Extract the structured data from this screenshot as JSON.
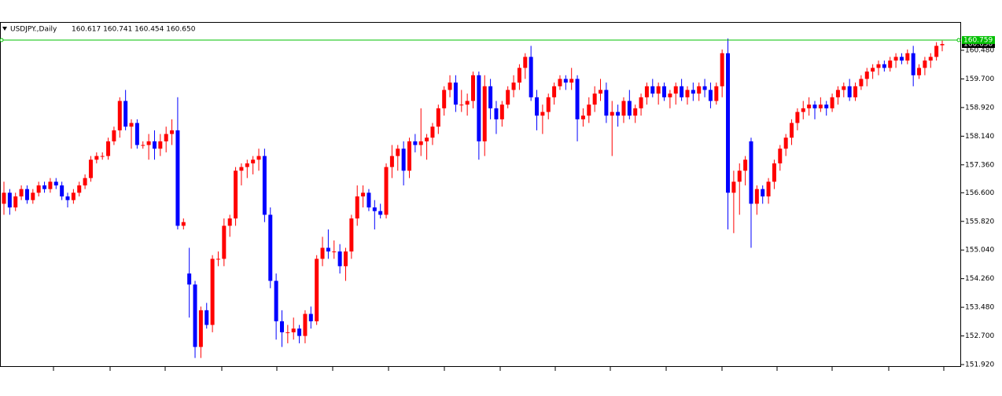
{
  "chart_data": {
    "type": "candlestick",
    "header": {
      "symbol": "USDJPY.,Daily",
      "ohlc_text": "160.617 160.741 160.454 160.650"
    },
    "up_color": "#ff0000",
    "down_color": "#0000ff",
    "ylim": [
      151.856,
      161.25
    ],
    "yticks": [
      {
        "value": 151.92,
        "label": "151.920"
      },
      {
        "value": 152.7,
        "label": "152.700"
      },
      {
        "value": 153.48,
        "label": "153.480"
      },
      {
        "value": 154.26,
        "label": "154.260"
      },
      {
        "value": 155.04,
        "label": "155.040"
      },
      {
        "value": 155.82,
        "label": "155.820"
      },
      {
        "value": 156.6,
        "label": "156.600"
      },
      {
        "value": 157.36,
        "label": "157.360"
      },
      {
        "value": 158.14,
        "label": "158.140"
      },
      {
        "value": 158.92,
        "label": "158.920"
      },
      {
        "value": 159.7,
        "label": "159.700"
      },
      {
        "value": 160.48,
        "label": "160.480"
      }
    ],
    "price_lines": [
      {
        "value": 160.759,
        "label": "160.759",
        "color": "#00c000",
        "line": true
      },
      {
        "value": 160.65,
        "label": "160.650",
        "color": "#000000",
        "line": false
      }
    ],
    "candles": [
      [
        156.3,
        156.9,
        156.0,
        156.6
      ],
      [
        156.6,
        156.7,
        156.0,
        156.2
      ],
      [
        156.2,
        156.6,
        156.1,
        156.5
      ],
      [
        156.5,
        156.8,
        156.4,
        156.7
      ],
      [
        156.7,
        156.8,
        156.3,
        156.4
      ],
      [
        156.4,
        156.7,
        156.3,
        156.6
      ],
      [
        156.6,
        156.9,
        156.5,
        156.8
      ],
      [
        156.8,
        156.9,
        156.6,
        156.7
      ],
      [
        156.7,
        157.0,
        156.6,
        156.9
      ],
      [
        156.9,
        157.0,
        156.7,
        156.8
      ],
      [
        156.8,
        156.9,
        156.4,
        156.5
      ],
      [
        156.5,
        156.6,
        156.2,
        156.4
      ],
      [
        156.4,
        156.7,
        156.3,
        156.6
      ],
      [
        156.6,
        156.9,
        156.5,
        156.8
      ],
      [
        156.8,
        157.1,
        156.7,
        157.0
      ],
      [
        157.0,
        157.6,
        156.9,
        157.5
      ],
      [
        157.5,
        157.7,
        157.4,
        157.6
      ],
      [
        157.6,
        157.7,
        157.5,
        157.6
      ],
      [
        157.6,
        158.1,
        157.5,
        158.0
      ],
      [
        158.0,
        158.4,
        157.9,
        158.3
      ],
      [
        158.3,
        159.2,
        158.1,
        159.1
      ],
      [
        159.1,
        159.4,
        158.3,
        158.4
      ],
      [
        158.4,
        158.6,
        157.8,
        158.5
      ],
      [
        158.5,
        158.6,
        157.8,
        157.9
      ],
      [
        157.9,
        158.0,
        157.8,
        157.9
      ],
      [
        157.9,
        158.2,
        157.5,
        158.0
      ],
      [
        158.0,
        158.3,
        157.5,
        157.8
      ],
      [
        157.8,
        158.2,
        157.6,
        158.0
      ],
      [
        158.0,
        158.4,
        157.7,
        158.2
      ],
      [
        158.2,
        158.6,
        157.9,
        158.3
      ],
      [
        158.3,
        159.2,
        155.6,
        155.7
      ],
      [
        155.7,
        155.9,
        155.6,
        155.8
      ],
      [
        154.4,
        155.1,
        153.2,
        154.1
      ],
      [
        154.1,
        154.2,
        152.1,
        152.4
      ],
      [
        152.4,
        153.5,
        152.1,
        153.4
      ],
      [
        153.4,
        153.6,
        152.9,
        153.0
      ],
      [
        153.0,
        154.9,
        152.8,
        154.8
      ],
      [
        154.8,
        155.0,
        154.6,
        154.8
      ],
      [
        154.8,
        155.9,
        154.6,
        155.7
      ],
      [
        155.7,
        156.0,
        155.4,
        155.9
      ],
      [
        155.9,
        157.3,
        155.7,
        157.2
      ],
      [
        157.2,
        157.4,
        156.8,
        157.3
      ],
      [
        157.3,
        157.5,
        157.0,
        157.4
      ],
      [
        157.4,
        157.6,
        157.1,
        157.5
      ],
      [
        157.5,
        157.8,
        157.2,
        157.6
      ],
      [
        157.6,
        157.8,
        155.8,
        156.0
      ],
      [
        156.0,
        156.2,
        154.0,
        154.2
      ],
      [
        154.2,
        154.4,
        152.6,
        153.1
      ],
      [
        153.1,
        153.4,
        152.4,
        152.8
      ],
      [
        152.8,
        153.0,
        152.5,
        152.8
      ],
      [
        152.8,
        153.2,
        152.6,
        152.9
      ],
      [
        152.9,
        153.0,
        152.5,
        152.7
      ],
      [
        152.7,
        153.4,
        152.5,
        153.3
      ],
      [
        153.3,
        153.5,
        152.9,
        153.1
      ],
      [
        153.1,
        154.9,
        153.0,
        154.8
      ],
      [
        154.8,
        155.4,
        154.6,
        155.1
      ],
      [
        155.1,
        155.6,
        154.8,
        155.0
      ],
      [
        155.0,
        155.3,
        154.8,
        155.0
      ],
      [
        155.0,
        155.2,
        154.4,
        154.6
      ],
      [
        154.6,
        155.1,
        154.2,
        155.0
      ],
      [
        155.0,
        156.0,
        154.8,
        155.9
      ],
      [
        155.9,
        156.8,
        155.7,
        156.5
      ],
      [
        156.5,
        156.8,
        156.2,
        156.6
      ],
      [
        156.6,
        156.7,
        156.1,
        156.2
      ],
      [
        156.2,
        156.4,
        155.6,
        156.1
      ],
      [
        156.1,
        156.3,
        155.9,
        156.0
      ],
      [
        156.0,
        157.4,
        155.9,
        157.3
      ],
      [
        157.3,
        157.9,
        157.0,
        157.6
      ],
      [
        157.6,
        157.9,
        157.2,
        157.8
      ],
      [
        157.8,
        158.0,
        156.8,
        157.2
      ],
      [
        157.2,
        158.1,
        157.0,
        158.0
      ],
      [
        158.0,
        158.2,
        157.7,
        157.9
      ],
      [
        157.9,
        158.9,
        157.6,
        158.0
      ],
      [
        158.0,
        158.2,
        157.5,
        158.1
      ],
      [
        158.1,
        158.5,
        157.9,
        158.4
      ],
      [
        158.4,
        159.0,
        158.2,
        158.9
      ],
      [
        158.9,
        159.5,
        158.7,
        159.4
      ],
      [
        159.4,
        159.8,
        159.2,
        159.6
      ],
      [
        159.6,
        159.8,
        158.8,
        159.0
      ],
      [
        159.0,
        159.4,
        158.8,
        159.0
      ],
      [
        159.0,
        159.3,
        158.7,
        159.1
      ],
      [
        159.1,
        159.9,
        158.9,
        159.8
      ],
      [
        159.8,
        159.9,
        157.5,
        158.0
      ],
      [
        158.0,
        159.8,
        157.6,
        159.5
      ],
      [
        159.5,
        159.7,
        158.6,
        158.9
      ],
      [
        158.9,
        159.1,
        158.2,
        158.6
      ],
      [
        158.6,
        159.1,
        158.4,
        159.0
      ],
      [
        159.0,
        159.5,
        158.9,
        159.4
      ],
      [
        159.4,
        159.8,
        159.2,
        159.6
      ],
      [
        159.6,
        160.1,
        159.4,
        160.0
      ],
      [
        160.0,
        160.4,
        159.7,
        160.3
      ],
      [
        160.3,
        160.6,
        159.1,
        159.2
      ],
      [
        159.2,
        159.4,
        158.3,
        158.7
      ],
      [
        158.7,
        159.0,
        158.2,
        158.8
      ],
      [
        158.8,
        159.3,
        158.6,
        159.2
      ],
      [
        159.2,
        159.6,
        159.0,
        159.5
      ],
      [
        159.5,
        159.8,
        159.4,
        159.7
      ],
      [
        159.7,
        159.8,
        159.4,
        159.6
      ],
      [
        159.6,
        160.0,
        159.4,
        159.7
      ],
      [
        159.7,
        159.8,
        158.0,
        158.6
      ],
      [
        158.6,
        158.9,
        158.4,
        158.7
      ],
      [
        158.7,
        159.2,
        158.5,
        159.0
      ],
      [
        159.0,
        159.5,
        158.8,
        159.3
      ],
      [
        159.3,
        159.7,
        159.1,
        159.4
      ],
      [
        159.4,
        159.6,
        158.5,
        158.7
      ],
      [
        158.7,
        159.1,
        157.6,
        158.8
      ],
      [
        158.8,
        159.0,
        158.4,
        158.7
      ],
      [
        158.7,
        159.2,
        158.5,
        159.1
      ],
      [
        159.1,
        159.4,
        158.6,
        158.7
      ],
      [
        158.7,
        159.0,
        158.5,
        158.9
      ],
      [
        158.9,
        159.3,
        158.7,
        159.2
      ],
      [
        159.2,
        159.6,
        159.0,
        159.5
      ],
      [
        159.5,
        159.7,
        159.2,
        159.3
      ],
      [
        159.3,
        159.6,
        159.0,
        159.5
      ],
      [
        159.5,
        159.6,
        159.1,
        159.2
      ],
      [
        159.2,
        159.4,
        158.9,
        159.3
      ],
      [
        159.3,
        159.6,
        159.0,
        159.5
      ],
      [
        159.5,
        159.7,
        159.1,
        159.2
      ],
      [
        159.2,
        159.5,
        159.0,
        159.4
      ],
      [
        159.4,
        159.6,
        159.1,
        159.3
      ],
      [
        159.3,
        159.6,
        159.1,
        159.5
      ],
      [
        159.5,
        159.7,
        159.2,
        159.4
      ],
      [
        159.4,
        159.6,
        158.9,
        159.1
      ],
      [
        159.1,
        159.6,
        159.0,
        159.5
      ],
      [
        159.5,
        160.5,
        159.2,
        160.4
      ],
      [
        160.4,
        160.8,
        155.6,
        156.6
      ],
      [
        156.6,
        157.2,
        155.5,
        156.9
      ],
      [
        156.9,
        157.4,
        156.0,
        157.2
      ],
      [
        157.2,
        157.6,
        156.8,
        157.5
      ],
      [
        158.0,
        158.1,
        155.1,
        156.3
      ],
      [
        156.3,
        156.8,
        156.0,
        156.7
      ],
      [
        156.7,
        156.8,
        156.3,
        156.5
      ],
      [
        156.5,
        157.0,
        156.3,
        156.9
      ],
      [
        156.9,
        157.5,
        156.7,
        157.4
      ],
      [
        157.4,
        157.9,
        157.2,
        157.8
      ],
      [
        157.8,
        158.2,
        157.6,
        158.1
      ],
      [
        158.1,
        158.6,
        157.9,
        158.5
      ],
      [
        158.5,
        158.9,
        158.3,
        158.8
      ],
      [
        158.8,
        159.1,
        158.6,
        158.9
      ],
      [
        158.9,
        159.2,
        158.7,
        159.0
      ],
      [
        159.0,
        159.1,
        158.6,
        158.9
      ],
      [
        158.9,
        159.2,
        158.8,
        159.0
      ],
      [
        159.0,
        159.1,
        158.7,
        158.9
      ],
      [
        158.9,
        159.3,
        158.8,
        159.2
      ],
      [
        159.2,
        159.5,
        159.0,
        159.4
      ],
      [
        159.4,
        159.6,
        159.2,
        159.5
      ],
      [
        159.5,
        159.7,
        159.1,
        159.2
      ],
      [
        159.2,
        159.6,
        159.1,
        159.5
      ],
      [
        159.5,
        159.8,
        159.4,
        159.7
      ],
      [
        159.7,
        160.0,
        159.5,
        159.9
      ],
      [
        159.9,
        160.1,
        159.7,
        160.0
      ],
      [
        160.0,
        160.2,
        159.8,
        160.1
      ],
      [
        160.1,
        160.2,
        159.9,
        160.0
      ],
      [
        160.0,
        160.3,
        159.9,
        160.2
      ],
      [
        160.2,
        160.4,
        160.0,
        160.3
      ],
      [
        160.3,
        160.4,
        160.1,
        160.2
      ],
      [
        160.2,
        160.5,
        160.1,
        160.4
      ],
      [
        160.4,
        160.6,
        159.5,
        159.8
      ],
      [
        159.8,
        160.1,
        159.7,
        160.0
      ],
      [
        160.0,
        160.3,
        159.8,
        160.2
      ],
      [
        160.2,
        160.4,
        160.0,
        160.3
      ],
      [
        160.3,
        160.7,
        160.2,
        160.6
      ],
      [
        160.617,
        160.741,
        160.454,
        160.65
      ]
    ]
  }
}
